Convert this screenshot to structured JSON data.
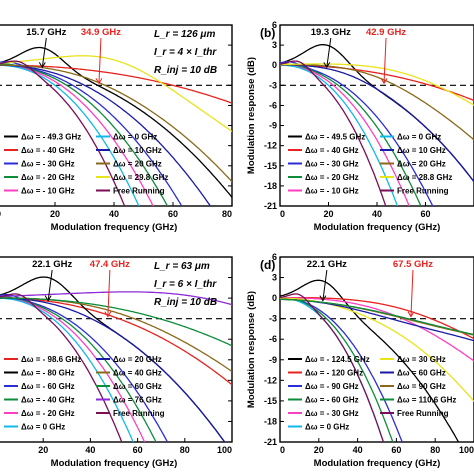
{
  "chart_data": [
    {
      "type": "line",
      "panel_label": "",
      "xlabel": "Modulation frequency (GHz)",
      "ylabel": "",
      "xlim": [
        0,
        80
      ],
      "ylim": [
        -21,
        6
      ],
      "x_ticks": [
        "0",
        "20",
        "40",
        "60",
        "80"
      ],
      "y_ticks": [],
      "params": [
        "L_r = 126 μm",
        "I_r = 4 × I_thr",
        "R_inj = 10 dB"
      ],
      "peak_annotations": [
        {
          "text": "15.7 GHz",
          "color": "#000000",
          "x": 15.7
        },
        {
          "text": "34.9 GHz",
          "color": "#e8231f",
          "x": 34.9
        }
      ],
      "threshold_db": -3,
      "series": [
        {
          "name": "Δω = - 49.3 GHz",
          "color": "#000000",
          "peak_x": 15.7,
          "peak_y": 2.6,
          "f3db": 34
        },
        {
          "name": "Δω = - 40 GHz",
          "color": "#e8231f",
          "peak_x": 0,
          "peak_y": 0,
          "f3db": 60
        },
        {
          "name": "Δω = - 30 GHz",
          "color": "#2b2ed6",
          "peak_x": 4,
          "peak_y": 0.5,
          "f3db": 26
        },
        {
          "name": "Δω = - 20 GHz",
          "color": "#0e8c3a",
          "peak_x": 3,
          "peak_y": 0.2,
          "f3db": 24
        },
        {
          "name": "Δω = - 10 GHz",
          "color": "#ff3fc2",
          "peak_x": 2,
          "peak_y": 0,
          "f3db": 22
        },
        {
          "name": "Δω = 0 GHz",
          "color": "#11b8ea",
          "peak_x": 0,
          "peak_y": 0,
          "f3db": 20
        },
        {
          "name": "Δω = 10 GHz",
          "color": "#1a1aa6",
          "peak_x": 22,
          "peak_y": -1.5,
          "f3db": 30
        },
        {
          "name": "Δω = 20 GHz",
          "color": "#8a6a1a",
          "peak_x": 30,
          "peak_y": -1.8,
          "f3db": 36
        },
        {
          "name": "Δω = 29.8 GHz",
          "color": "#e8e41c",
          "peak_x": 40,
          "peak_y": 0.8,
          "f3db": 46
        },
        {
          "name": "Free Running",
          "color": "#7a0e57",
          "peak_x": 8,
          "peak_y": 0.5,
          "f3db": 18
        }
      ]
    },
    {
      "type": "line",
      "panel_label": "(b)",
      "xlabel": "Modulation frequency (GHz)",
      "ylabel": "Modulation response (dB)",
      "xlim": [
        0,
        80
      ],
      "ylim": [
        -21,
        6
      ],
      "x_ticks": [
        "0",
        "20",
        "40",
        "60"
      ],
      "y_ticks": [
        "6",
        "3",
        "0",
        "-3",
        "-6",
        "-9",
        "-12",
        "-15",
        "-18",
        "-21"
      ],
      "params": [],
      "peak_annotations": [
        {
          "text": "19.3 GHz",
          "color": "#000000",
          "x": 19.3
        },
        {
          "text": "42.9 GHz",
          "color": "#e8231f",
          "x": 42.9
        }
      ],
      "threshold_db": -3,
      "series": [
        {
          "name": "Δω = - 49.5 GHz",
          "color": "#000000",
          "peak_x": 19.3,
          "peak_y": 3,
          "f3db": 36
        },
        {
          "name": "Δω = - 40 GHz",
          "color": "#e8231f",
          "peak_x": 0,
          "peak_y": 0,
          "f3db": 62
        },
        {
          "name": "Δω = - 30 GHz",
          "color": "#2b2ed6",
          "peak_x": 4,
          "peak_y": 0.5,
          "f3db": 26
        },
        {
          "name": "Δω = - 20 GHz",
          "color": "#0e8c3a",
          "peak_x": 3,
          "peak_y": 0.2,
          "f3db": 24
        },
        {
          "name": "Δω = - 10 GHz",
          "color": "#ff3fc2",
          "peak_x": 2,
          "peak_y": 0,
          "f3db": 22
        },
        {
          "name": "Δω = 0 GHz",
          "color": "#11b8ea",
          "peak_x": 0,
          "peak_y": 0,
          "f3db": 20
        },
        {
          "name": "Δω = 10 GHz",
          "color": "#1a1aa6",
          "peak_x": 28,
          "peak_y": -1.4,
          "f3db": 36
        },
        {
          "name": "Δω = 20 GHz",
          "color": "#8a6a1a",
          "peak_x": 38,
          "peak_y": -1.5,
          "f3db": 44
        },
        {
          "name": "Δω = 28.8 GHz",
          "color": "#e8e41c",
          "peak_x": 52,
          "peak_y": -1.3,
          "f3db": 56
        },
        {
          "name": "Free Running",
          "color": "#7a0e57",
          "peak_x": 8,
          "peak_y": 0.5,
          "f3db": 18
        }
      ]
    },
    {
      "type": "line",
      "panel_label": "",
      "xlabel": "Modulation frequency (GHz)",
      "ylabel": "",
      "xlim": [
        0,
        100
      ],
      "ylim": [
        -21,
        6
      ],
      "x_ticks": [
        "20",
        "40",
        "60",
        "80",
        "100"
      ],
      "y_ticks": [],
      "params": [
        "L_r = 63 μm",
        "I_r = 6 × I_thr",
        "R_inj = 10 dB"
      ],
      "peak_annotations": [
        {
          "text": "22.1 GHz",
          "color": "#000000",
          "x": 22.1
        },
        {
          "text": "47.4 GHz",
          "color": "#e8231f",
          "x": 47.4
        }
      ],
      "threshold_db": -3,
      "series": [
        {
          "name": "Δω = - 98.6 GHz",
          "color": "#e8231f",
          "peak_x": 0,
          "peak_y": 0,
          "f3db": 52
        },
        {
          "name": "Δω = - 80 GHz",
          "color": "#000000",
          "peak_x": 22.1,
          "peak_y": 3,
          "f3db": 40
        },
        {
          "name": "Δω = - 60 GHz",
          "color": "#2b2ed6",
          "peak_x": 5,
          "peak_y": 0.5,
          "f3db": 30
        },
        {
          "name": "Δω = - 40 GHz",
          "color": "#0e8c3a",
          "peak_x": 4,
          "peak_y": 0.2,
          "f3db": 28
        },
        {
          "name": "Δω = - 20 GHz",
          "color": "#ff3fc2",
          "peak_x": 3,
          "peak_y": 0,
          "f3db": 26
        },
        {
          "name": "Δω = 0 GHz",
          "color": "#11b8ea",
          "peak_x": 0,
          "peak_y": 0,
          "f3db": 24
        },
        {
          "name": "Δω = 20 GHz",
          "color": "#1a1aa6",
          "peak_x": 30,
          "peak_y": -1.5,
          "f3db": 40
        },
        {
          "name": "Δω = 40 GHz",
          "color": "#8a6a1a",
          "peak_x": 50,
          "peak_y": -2.0,
          "f3db": 56
        },
        {
          "name": "Δω = 60 GHz",
          "color": "#0e8c3a",
          "peak_x": 64,
          "peak_y": -2.5,
          "f3db": 68
        },
        {
          "name": "Δω = 76 GHz",
          "color": "#8e2ad6",
          "peak_x": 88,
          "peak_y": 0,
          "f3db": 94
        },
        {
          "name": "Free Running",
          "color": "#7a0e57",
          "peak_x": 10,
          "peak_y": 0.5,
          "f3db": 22
        }
      ]
    },
    {
      "type": "line",
      "panel_label": "(d)",
      "xlabel": "Modulation frequency (GHz)",
      "ylabel": "Modulation response (dB)",
      "xlim": [
        0,
        100
      ],
      "ylim": [
        -21,
        6
      ],
      "x_ticks": [
        "0",
        "20",
        "40",
        "60",
        "80",
        "100"
      ],
      "y_ticks": [
        "6",
        "3",
        "0",
        "-3",
        "-6",
        "-9",
        "-12",
        "-15",
        "-18",
        "-21"
      ],
      "params": [],
      "peak_annotations": [
        {
          "text": "22.1 GHz",
          "color": "#000000",
          "x": 22.1
        },
        {
          "text": "67.5 GHz",
          "color": "#e8231f",
          "x": 67.5
        }
      ],
      "threshold_db": -3,
      "series": [
        {
          "name": "Δω = - 124.5 GHz",
          "color": "#000000",
          "peak_x": 22.1,
          "peak_y": 2.5,
          "f3db": 38
        },
        {
          "name": "Δω = - 120 GHz",
          "color": "#e8231f",
          "peak_x": 62,
          "peak_y": -1.5,
          "f3db": 72
        },
        {
          "name": "Δω = - 90 GHz",
          "color": "#2b2ed6",
          "peak_x": 4,
          "peak_y": 0,
          "f3db": 26
        },
        {
          "name": "Δω = - 60 GHz",
          "color": "#0e8c3a",
          "peak_x": 3,
          "peak_y": 0,
          "f3db": 24
        },
        {
          "name": "Δω = - 30 GHz",
          "color": "#ff3fc2",
          "peak_x": 52,
          "peak_y": -1.8,
          "f3db": 60
        },
        {
          "name": "Δω = 0 GHz",
          "color": "#11b8ea",
          "peak_x": 0,
          "peak_y": 0,
          "f3db": 22
        },
        {
          "name": "Δω = 30 GHz",
          "color": "#e8e41c",
          "peak_x": 40,
          "peak_y": -2.2,
          "f3db": 48
        },
        {
          "name": "Δω = 60 GHz",
          "color": "#1a1aa6",
          "peak_x": 70,
          "peak_y": -4,
          "f3db": 78
        },
        {
          "name": "Δω = 90 GHz",
          "color": "#8a6a1a",
          "peak_x": 86,
          "peak_y": -4.5,
          "f3db": 92
        },
        {
          "name": "Δω = 110.6 GHz",
          "color": "#0e8c3a",
          "peak_x": 95,
          "peak_y": -5,
          "f3db": 98
        },
        {
          "name": "Free Running",
          "color": "#7a0e57",
          "peak_x": 10,
          "peak_y": 0.5,
          "f3db": 22
        }
      ]
    }
  ]
}
